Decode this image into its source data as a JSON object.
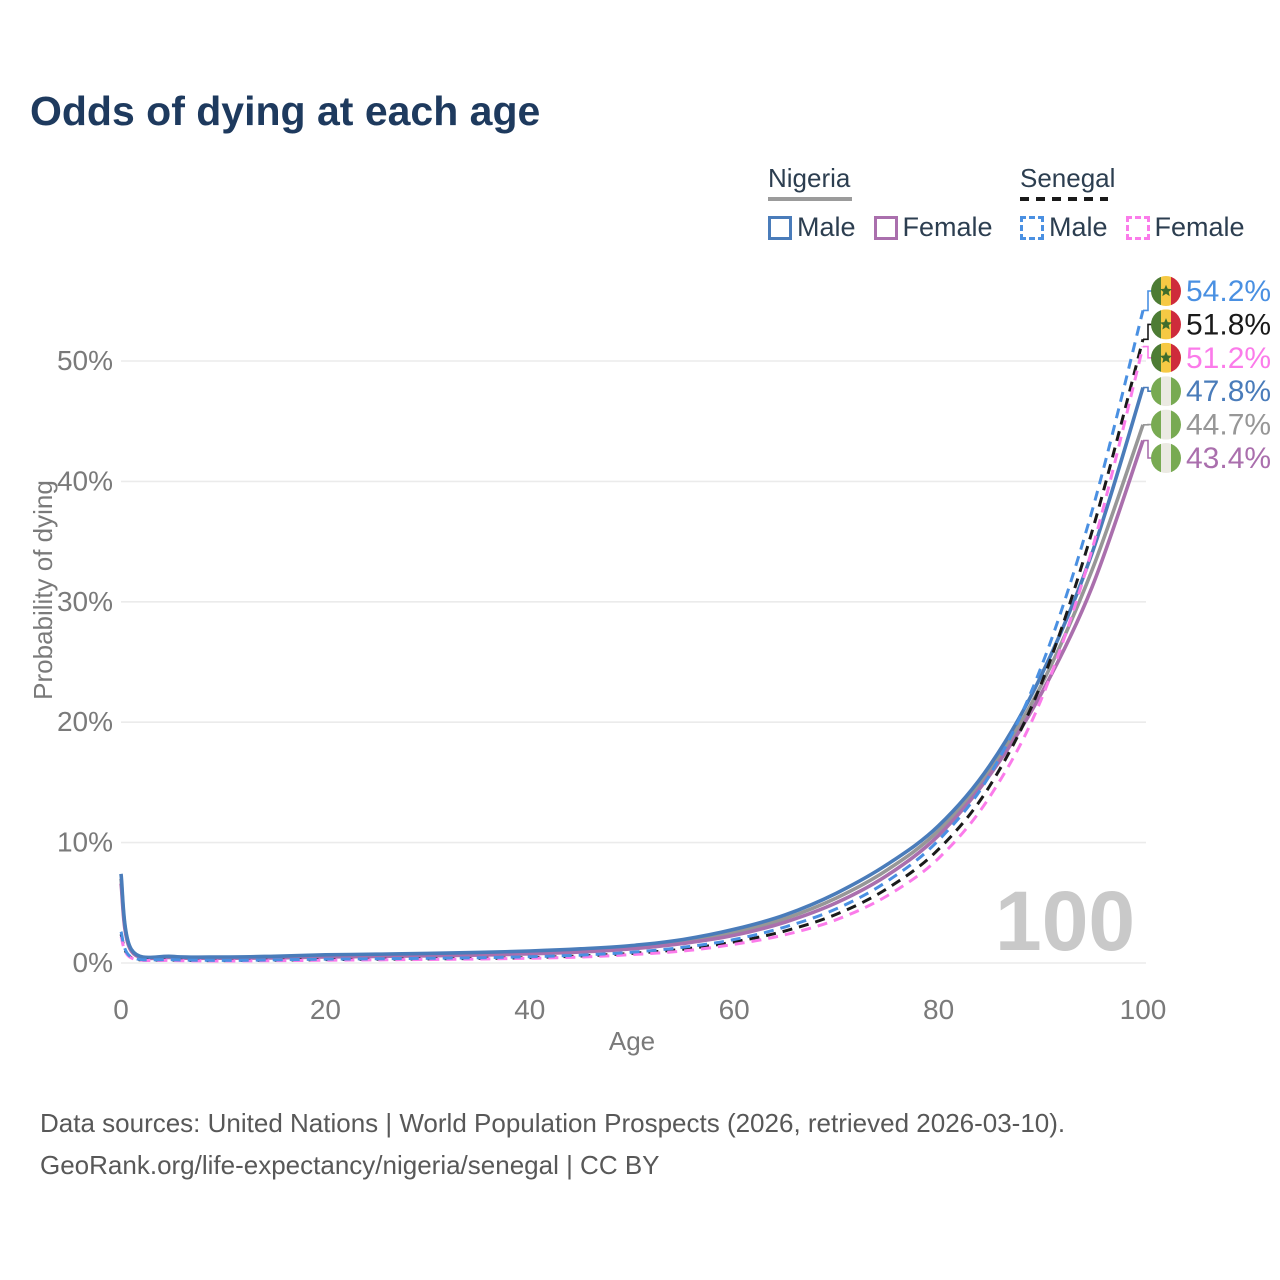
{
  "title": {
    "text": "Odds of dying at each age",
    "color": "#1e3a5e"
  },
  "legend": {
    "text_color": "#2c3e50",
    "groups": [
      {
        "label": "Nigeria",
        "style": "solid",
        "underline_color": "#9b9b9b",
        "items": [
          {
            "label": "Male",
            "color": "#4a7cba"
          },
          {
            "label": "Female",
            "color": "#aa6fad"
          }
        ]
      },
      {
        "label": "Senegal",
        "style": "dashed",
        "underline_color": "#1a1a1a",
        "items": [
          {
            "label": "Male",
            "color": "#4a90e2"
          },
          {
            "label": "Female",
            "color": "#fb7bea"
          }
        ]
      }
    ]
  },
  "chart_data": {
    "type": "line",
    "title": "Odds of dying at each age",
    "xlabel": "Age",
    "ylabel": "Probability of dying",
    "xlim": [
      0,
      100
    ],
    "ylim": [
      0,
      57.5
    ],
    "xticks": [
      0,
      20,
      40,
      60,
      80,
      100
    ],
    "yticks": [
      0,
      10,
      20,
      30,
      40,
      50
    ],
    "ytick_suffix": "%",
    "grid": true,
    "x": [
      0,
      1,
      5,
      10,
      15,
      20,
      25,
      30,
      35,
      40,
      45,
      50,
      55,
      60,
      65,
      70,
      75,
      80,
      85,
      90,
      95,
      100
    ],
    "series": [
      {
        "name": "Nigeria",
        "country": "nigeria",
        "sex": "both",
        "color": "#979797",
        "dashed": false,
        "end_label": "44.7%",
        "values": [
          7.0,
          1.08,
          0.5,
          0.45,
          0.49,
          0.59,
          0.64,
          0.7,
          0.77,
          0.88,
          1.05,
          1.32,
          1.78,
          2.55,
          3.7,
          5.4,
          7.75,
          11.0,
          16.0,
          23.0,
          32.6,
          44.7
        ]
      },
      {
        "name": "Nigeria Female",
        "country": "nigeria",
        "sex": "female",
        "color": "#aa6fad",
        "dashed": false,
        "end_label": "43.4%",
        "values": [
          6.6,
          1.0,
          0.45,
          0.4,
          0.42,
          0.5,
          0.55,
          0.6,
          0.66,
          0.76,
          0.92,
          1.18,
          1.62,
          2.3,
          3.4,
          5.0,
          7.3,
          10.6,
          15.6,
          22.3,
          31.2,
          43.4
        ]
      },
      {
        "name": "Nigeria Male",
        "country": "nigeria",
        "sex": "male",
        "color": "#4a7cba",
        "dashed": false,
        "end_label": "47.8%",
        "values": [
          7.4,
          1.15,
          0.55,
          0.5,
          0.56,
          0.68,
          0.73,
          0.8,
          0.88,
          1.0,
          1.18,
          1.45,
          1.95,
          2.8,
          4.0,
          5.8,
          8.2,
          11.4,
          16.4,
          23.8,
          34.0,
          47.8
        ]
      },
      {
        "name": "Senegal",
        "country": "senegal",
        "sex": "both",
        "color": "#1a1a1a",
        "dashed": true,
        "end_label": "51.8%",
        "values": [
          2.4,
          0.46,
          0.24,
          0.2,
          0.23,
          0.28,
          0.31,
          0.34,
          0.38,
          0.45,
          0.58,
          0.8,
          1.15,
          1.75,
          2.67,
          4.05,
          6.2,
          9.45,
          14.7,
          23.1,
          35.8,
          51.8
        ]
      },
      {
        "name": "Senegal Female",
        "country": "senegal",
        "sex": "female",
        "color": "#fb7bea",
        "dashed": true,
        "end_label": "51.2%",
        "values": [
          2.2,
          0.42,
          0.21,
          0.17,
          0.19,
          0.23,
          0.26,
          0.29,
          0.33,
          0.39,
          0.5,
          0.7,
          1.0,
          1.55,
          2.35,
          3.6,
          5.6,
          8.7,
          13.8,
          21.8,
          34.3,
          51.2
        ]
      },
      {
        "name": "Senegal Male",
        "country": "senegal",
        "sex": "male",
        "color": "#4a90e2",
        "dashed": true,
        "end_label": "54.2%",
        "values": [
          2.6,
          0.5,
          0.27,
          0.22,
          0.26,
          0.32,
          0.35,
          0.39,
          0.44,
          0.52,
          0.66,
          0.9,
          1.3,
          1.95,
          3.0,
          4.5,
          6.8,
          10.2,
          15.6,
          24.5,
          37.5,
          54.2
        ]
      }
    ],
    "flag_colors": {
      "senegal": {
        "bands": [
          "#4d7c34",
          "#f6c944",
          "#ce2b3b"
        ],
        "star": "#3f6d2c"
      },
      "nigeria": {
        "bands": [
          "#78aa52",
          "#ebeae2",
          "#78aa52"
        ]
      }
    },
    "legend_position": "top-right"
  },
  "watermark": {
    "text": "100",
    "color": "#c9c9c9"
  },
  "axis_style": {
    "text_color": "#7a7a7a",
    "grid_color": "#ebebeb"
  },
  "source": {
    "color": "#585858",
    "line1": "Data sources: United Nations | World Population Prospects (2026, retrieved 2026-03-10).",
    "line2": "GeoRank.org/life-expectancy/nigeria/senegal | CC BY"
  }
}
